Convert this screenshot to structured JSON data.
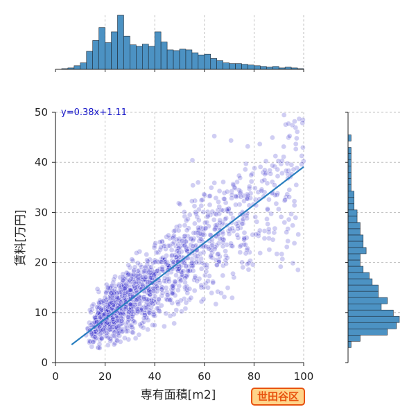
{
  "chart_data": {
    "type": "scatter",
    "xlabel": "専有面積[m2]",
    "ylabel": "賃料[万円]",
    "xlim": [
      0,
      100
    ],
    "ylim": [
      0,
      50
    ],
    "x_ticks": [
      0,
      20,
      40,
      60,
      80,
      100
    ],
    "y_ticks": [
      0,
      10,
      20,
      30,
      40,
      50
    ],
    "grid": true,
    "regression": {
      "slope": 0.38,
      "intercept": 1.11,
      "label": "y=0.38x+1.11"
    },
    "scatter_summary": {
      "point_color": "#2b20c8",
      "point_count_shown": 1500,
      "x_range": [
        6,
        100
      ],
      "y_range": [
        2,
        50
      ]
    },
    "top_histogram": {
      "variable": "専有面積[m2]",
      "bin_edges_start": 0,
      "bin_width": 2.5,
      "counts": [
        0,
        1,
        2,
        5,
        9,
        25,
        40,
        58,
        37,
        52,
        75,
        46,
        34,
        32,
        35,
        32,
        52,
        38,
        27,
        26,
        28,
        27,
        23,
        20,
        21,
        15,
        12,
        9,
        8,
        8,
        7,
        6,
        5,
        4,
        3,
        4,
        2,
        3,
        2,
        1
      ],
      "color": "#4c92c3"
    },
    "right_histogram": {
      "variable": "賃料[万円]",
      "bin_edges_start": 3,
      "bin_width": 1.25,
      "counts": [
        1,
        4,
        13,
        16,
        17,
        15,
        11,
        13,
        10,
        10,
        8,
        7,
        5,
        4,
        4,
        6,
        5,
        5,
        4,
        4,
        3,
        3,
        2,
        2,
        2,
        1,
        1,
        1,
        1,
        1,
        1,
        1,
        0,
        1,
        0,
        0,
        0,
        0
      ],
      "color": "#4c92c3"
    },
    "annotation": "世田谷区"
  }
}
